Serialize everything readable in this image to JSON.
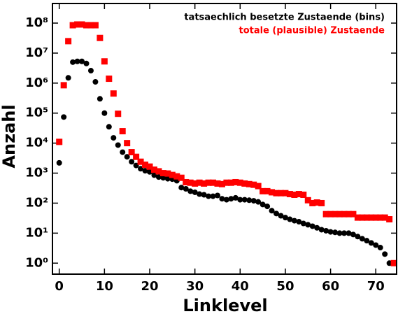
{
  "chart_data": {
    "type": "scatter",
    "log_y": true,
    "x_label": "Linklevel",
    "y_label": "Anzahl",
    "legend": "upper right",
    "xlim": [
      -1.5,
      74.6
    ],
    "xticks": [
      0,
      10,
      20,
      30,
      40,
      50,
      60,
      70
    ],
    "ylim": [
      0.43,
      450000000
    ],
    "yticks": [
      {
        "value": 1,
        "label": "10⁰"
      },
      {
        "value": 10,
        "label": "10¹"
      },
      {
        "value": 100,
        "label": "10²"
      },
      {
        "value": 1000,
        "label": "10³"
      },
      {
        "value": 10000,
        "label": "10⁴"
      },
      {
        "value": 100000,
        "label": "10⁵"
      },
      {
        "value": 1000000,
        "label": "10⁶"
      },
      {
        "value": 10000000,
        "label": "10⁷"
      },
      {
        "value": 100000000,
        "label": "10⁸"
      }
    ],
    "series": [
      {
        "name": "tatsaechlich besetzte Zustaende (bins)",
        "color": "#000000",
        "marker": "circle",
        "x": [
          0,
          1,
          2,
          3,
          4,
          5,
          6,
          7,
          8,
          9,
          10,
          11,
          12,
          13,
          14,
          15,
          16,
          17,
          18,
          19,
          20,
          21,
          22,
          23,
          24,
          25,
          26,
          27,
          28,
          29,
          30,
          31,
          32,
          33,
          34,
          35,
          36,
          37,
          38,
          39,
          40,
          41,
          42,
          43,
          44,
          45,
          46,
          47,
          48,
          49,
          50,
          51,
          52,
          53,
          54,
          55,
          56,
          57,
          58,
          59,
          60,
          61,
          62,
          63,
          64,
          65,
          66,
          67,
          68,
          69,
          70,
          71,
          72,
          73
        ],
        "values": [
          2200,
          74000,
          1500000,
          5000000,
          5300000,
          5300000,
          4500000,
          2600000,
          1100000,
          300000,
          100000,
          35000,
          15000,
          8600,
          5000,
          3500,
          2400,
          1800,
          1400,
          1200,
          1100,
          860,
          740,
          700,
          650,
          630,
          560,
          330,
          300,
          250,
          230,
          200,
          190,
          170,
          170,
          180,
          140,
          130,
          140,
          150,
          130,
          130,
          125,
          120,
          110,
          90,
          78,
          56,
          45,
          38,
          33,
          29,
          26,
          24,
          21,
          19,
          17,
          15,
          13,
          12,
          11,
          10.6,
          10,
          10,
          10,
          9,
          7.7,
          6.5,
          5.6,
          4.7,
          4,
          3.3,
          2,
          1
        ]
      },
      {
        "name": "totale (plausible) Zustaende",
        "color": "#ff0000",
        "marker": "square",
        "x": [
          0,
          1,
          2,
          3,
          4,
          5,
          6,
          7,
          8,
          9,
          10,
          11,
          12,
          13,
          14,
          15,
          16,
          17,
          18,
          19,
          20,
          21,
          22,
          23,
          24,
          25,
          26,
          27,
          28,
          29,
          30,
          31,
          32,
          33,
          34,
          35,
          36,
          37,
          38,
          39,
          40,
          41,
          42,
          43,
          44,
          45,
          46,
          47,
          48,
          49,
          50,
          51,
          52,
          53,
          54,
          55,
          56,
          57,
          58,
          59,
          60,
          61,
          62,
          63,
          64,
          65,
          66,
          67,
          68,
          69,
          70,
          71,
          72,
          73,
          74
        ],
        "values": [
          11000,
          850000,
          25000000,
          85000000,
          90000000,
          90000000,
          85000000,
          85000000,
          85000000,
          32000000,
          5300000,
          1400000,
          450000,
          95000,
          25000,
          10000,
          5000,
          3500,
          2400,
          1900,
          1650,
          1300,
          1150,
          1000,
          970,
          870,
          780,
          700,
          500,
          480,
          450,
          480,
          450,
          480,
          480,
          450,
          430,
          480,
          480,
          500,
          480,
          450,
          430,
          410,
          370,
          250,
          250,
          230,
          215,
          215,
          215,
          200,
          190,
          200,
          190,
          125,
          100,
          105,
          100,
          43,
          43,
          43,
          43,
          43,
          43,
          43,
          33,
          33,
          33,
          33,
          33,
          33,
          33,
          29,
          1
        ]
      }
    ]
  }
}
